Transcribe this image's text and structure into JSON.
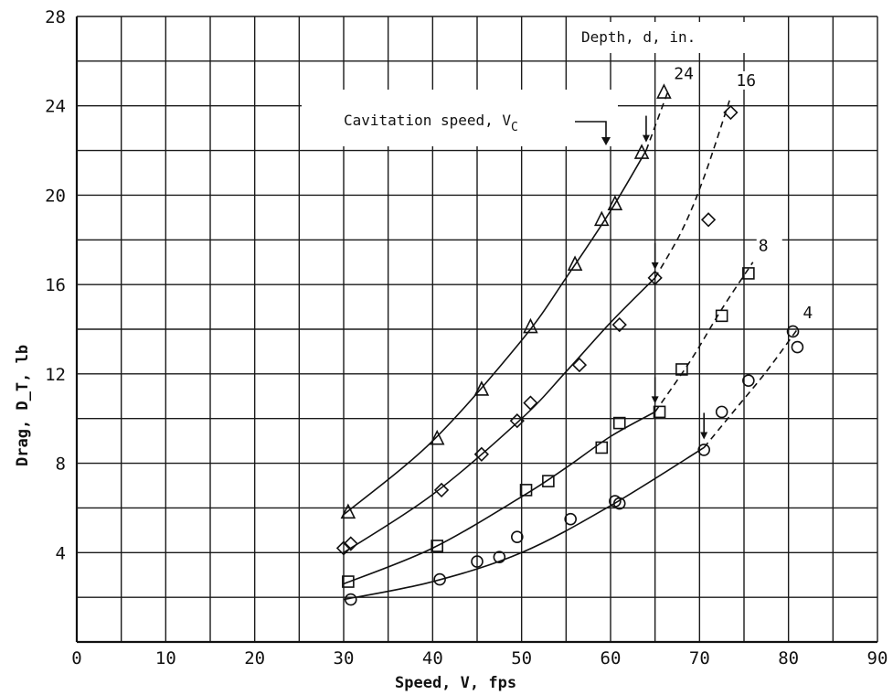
{
  "chart_data": {
    "type": "scatter",
    "title": "",
    "xlabel": "Speed, V, fps",
    "ylabel": "Drag, D_T, lb",
    "xlim": [
      0,
      90
    ],
    "ylim": [
      0,
      28
    ],
    "x_ticks": [
      "0",
      "10",
      "20",
      "30",
      "40",
      "50",
      "60",
      "70",
      "80",
      "90"
    ],
    "y_ticks": [
      "4",
      "8",
      "12",
      "16",
      "20",
      "24",
      "28"
    ],
    "grid": true,
    "legend_title": "Depth, d, in.",
    "annotation": "Cavitation speed, V",
    "annotation_subscript": "C",
    "series": [
      {
        "name": "24",
        "marker": "triangle",
        "points": [
          [
            30.5,
            5.8
          ],
          [
            40.5,
            9.1
          ],
          [
            45.5,
            11.3
          ],
          [
            51,
            14.1
          ],
          [
            56,
            16.9
          ],
          [
            59,
            18.9
          ],
          [
            60.5,
            19.6
          ],
          [
            63.5,
            21.9
          ],
          [
            66,
            24.6
          ]
        ],
        "cavitation_speed": 64,
        "curve_solid": [
          [
            30,
            5.7
          ],
          [
            40,
            9.0
          ],
          [
            50,
            13.5
          ],
          [
            55,
            16.3
          ],
          [
            60,
            19.3
          ],
          [
            64,
            22.0
          ]
        ],
        "curve_dashed": [
          [
            64,
            22.0
          ],
          [
            66.5,
            24.7
          ]
        ]
      },
      {
        "name": "16",
        "marker": "diamond",
        "points": [
          [
            30,
            4.2
          ],
          [
            30.8,
            4.4
          ],
          [
            41,
            6.8
          ],
          [
            45.5,
            8.4
          ],
          [
            49.5,
            9.9
          ],
          [
            51,
            10.7
          ],
          [
            56.5,
            12.4
          ],
          [
            61,
            14.2
          ],
          [
            65,
            16.3
          ],
          [
            71,
            18.9
          ],
          [
            73.5,
            23.7
          ]
        ],
        "cavitation_speed": 65,
        "curve_solid": [
          [
            30,
            4.0
          ],
          [
            40,
            6.6
          ],
          [
            50,
            10.0
          ],
          [
            55,
            12.1
          ],
          [
            60,
            14.3
          ],
          [
            65,
            16.3
          ]
        ],
        "curve_dashed": [
          [
            65,
            16.3
          ],
          [
            68,
            18.4
          ],
          [
            70.5,
            20.8
          ],
          [
            73.5,
            24.4
          ]
        ]
      },
      {
        "name": "8",
        "marker": "square",
        "points": [
          [
            30.5,
            2.7
          ],
          [
            40.5,
            4.3
          ],
          [
            50.5,
            6.8
          ],
          [
            53,
            7.2
          ],
          [
            59,
            8.7
          ],
          [
            61,
            9.8
          ],
          [
            65.5,
            10.3
          ],
          [
            68,
            12.2
          ],
          [
            72.5,
            14.6
          ],
          [
            75.5,
            16.5
          ]
        ],
        "cavitation_speed": 65,
        "curve_solid": [
          [
            30,
            2.6
          ],
          [
            40,
            4.2
          ],
          [
            50,
            6.5
          ],
          [
            55,
            7.8
          ],
          [
            60,
            9.2
          ],
          [
            65,
            10.3
          ]
        ],
        "curve_dashed": [
          [
            65,
            10.3
          ],
          [
            69,
            12.6
          ],
          [
            72.5,
            14.9
          ],
          [
            76,
            17.0
          ]
        ]
      },
      {
        "name": "4",
        "marker": "circle",
        "points": [
          [
            30.8,
            1.9
          ],
          [
            40.8,
            2.8
          ],
          [
            45,
            3.6
          ],
          [
            47.5,
            3.8
          ],
          [
            49.5,
            4.7
          ],
          [
            55.5,
            5.5
          ],
          [
            60.5,
            6.3
          ],
          [
            61,
            6.2
          ],
          [
            70.5,
            8.6
          ],
          [
            72.5,
            10.3
          ],
          [
            75.5,
            11.7
          ],
          [
            80.5,
            13.9
          ],
          [
            81,
            13.2
          ]
        ],
        "cavitation_speed": 70.5,
        "curve_solid": [
          [
            30,
            1.9
          ],
          [
            40,
            2.7
          ],
          [
            50,
            4.0
          ],
          [
            60,
            6.1
          ],
          [
            70.5,
            8.7
          ]
        ],
        "curve_dashed": [
          [
            70.5,
            8.7
          ],
          [
            74,
            10.4
          ],
          [
            77.5,
            12.1
          ],
          [
            81,
            14.0
          ]
        ]
      }
    ]
  }
}
